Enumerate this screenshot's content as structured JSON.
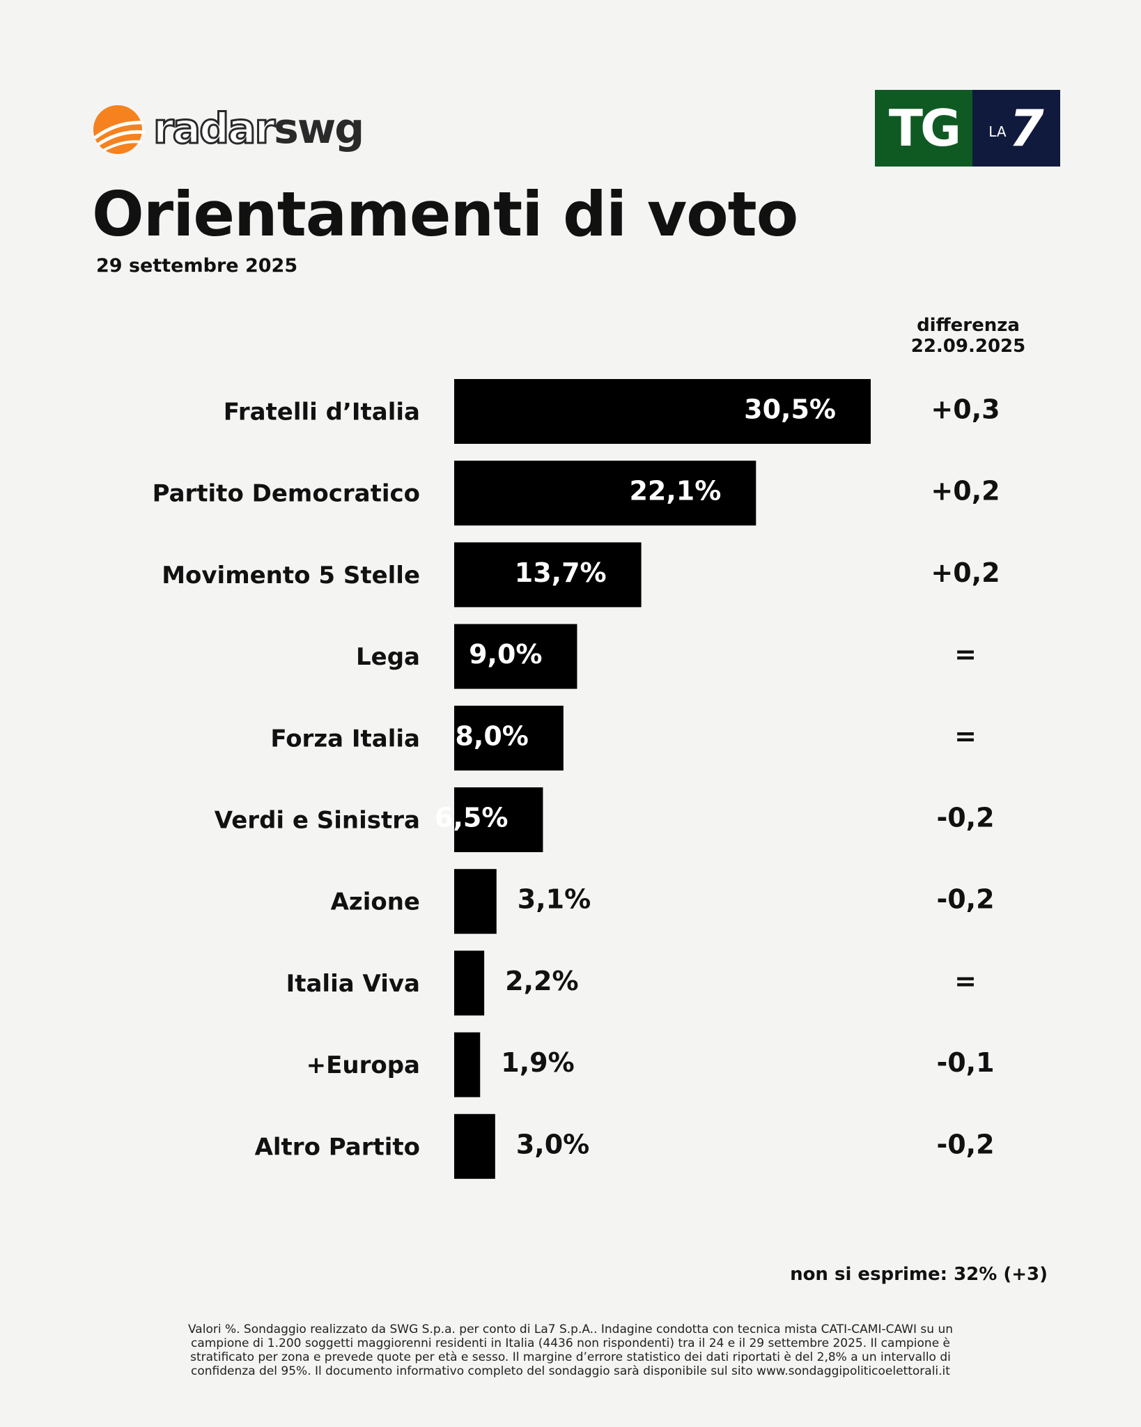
{
  "brand": {
    "radar_word": "radar",
    "swg_word": "swg",
    "tg_word": "TG",
    "la_word": "LA",
    "seven_word": "7",
    "accent": "#f5821f"
  },
  "header": {
    "title": "Orientamenti di voto",
    "date": "29 settembre 2025"
  },
  "diff_header": {
    "line1": "differenza",
    "line2": "22.09.2025"
  },
  "chart_data": {
    "type": "bar",
    "orientation": "horizontal",
    "title": "Orientamenti di voto",
    "categories": [
      "Fratelli d’Italia",
      "Partito Democratico",
      "Movimento 5 Stelle",
      "Lega",
      "Forza Italia",
      "Verdi e Sinistra",
      "Azione",
      "Italia Viva",
      "+Europa",
      "Altro Partito"
    ],
    "values": [
      30.5,
      22.1,
      13.7,
      9.0,
      8.0,
      6.5,
      3.1,
      2.2,
      1.9,
      3.0
    ],
    "value_labels": [
      "30,5%",
      "22,1%",
      "13,7%",
      "9,0%",
      "8,0%",
      "6,5%",
      "3,1%",
      "2,2%",
      "1,9%",
      "3,0%"
    ],
    "differences": [
      "+0,3",
      "+0,2",
      "+0,2",
      "=",
      "=",
      "-0,2",
      "-0,2",
      "=",
      "-0,1",
      "-0,2"
    ],
    "xlim": [
      0,
      30.5
    ],
    "bar_color": "#000000",
    "grid": false,
    "legend": "none"
  },
  "footer": {
    "non_si_esprime": "non si esprime: 32% (+3)",
    "note_lines": [
      "Valori %. Sondaggio realizzato da SWG S.p.a. per conto di La7 S.p.A.. Indagine condotta con tecnica mista CATI-CAMI-CAWI su un",
      "campione di 1.200 soggetti maggiorenni residenti in Italia (4436 non rispondenti) tra il 24 e il 29 settembre 2025. Il campione è",
      "stratificato per zona e prevede quote per età e sesso. Il margine d’errore statistico dei dati riportati è del 2,8% a un intervallo di",
      "confidenza del 95%. Il documento informativo completo del sondaggio sarà disponibile sul sito www.sondaggipoliticoelettorali.it"
    ]
  }
}
